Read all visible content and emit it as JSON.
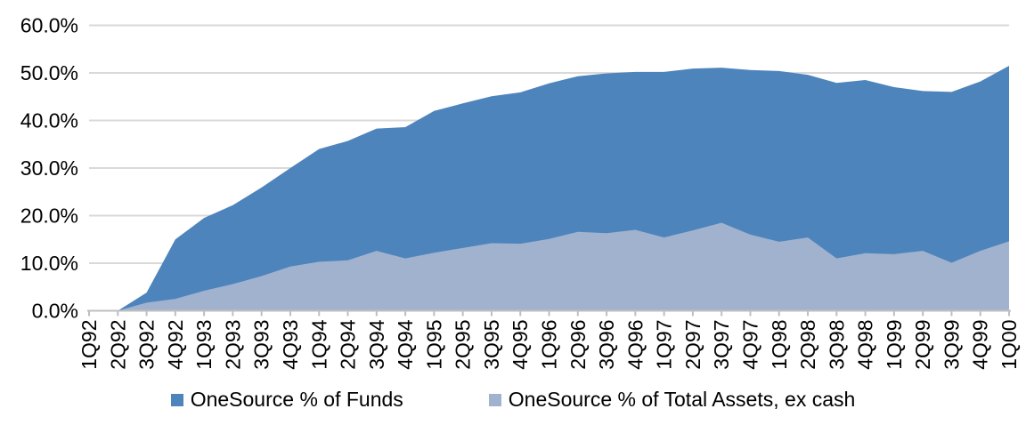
{
  "chart_data": {
    "type": "area",
    "title": "",
    "xlabel": "",
    "ylabel": "",
    "ylim": [
      0,
      60
    ],
    "ytick_step": 10,
    "ytick_labels": [
      "0.0%",
      "10.0%",
      "20.0%",
      "30.0%",
      "40.0%",
      "50.0%",
      "60.0%"
    ],
    "grid": true,
    "legend_position": "bottom",
    "categories": [
      "1Q92",
      "2Q92",
      "3Q92",
      "4Q92",
      "1Q93",
      "2Q93",
      "3Q93",
      "4Q93",
      "1Q94",
      "2Q94",
      "3Q94",
      "4Q94",
      "1Q95",
      "2Q95",
      "3Q95",
      "4Q95",
      "1Q96",
      "2Q96",
      "3Q96",
      "4Q96",
      "1Q97",
      "2Q97",
      "3Q97",
      "4Q97",
      "1Q98",
      "2Q98",
      "3Q98",
      "4Q98",
      "1Q99",
      "2Q99",
      "3Q99",
      "4Q99",
      "1Q00"
    ],
    "series": [
      {
        "name": "OneSource % of Funds",
        "color": "#4e84bc",
        "values": [
          0,
          0,
          3.8,
          15.0,
          19.5,
          22.2,
          25.9,
          30.0,
          34.0,
          35.7,
          38.3,
          38.6,
          42.0,
          43.6,
          45.1,
          45.9,
          47.8,
          49.3,
          49.9,
          50.2,
          50.2,
          50.9,
          51.1,
          50.6,
          50.4,
          49.6,
          47.9,
          48.5,
          47.0,
          46.2,
          46.0,
          48.2,
          51.5
        ]
      },
      {
        "name": "OneSource % of Total Assets, ex cash",
        "color": "#a0b2ce",
        "values": [
          0,
          0,
          1.7,
          2.5,
          4.2,
          5.6,
          7.3,
          9.3,
          10.3,
          10.6,
          12.6,
          11.0,
          12.2,
          13.2,
          14.2,
          14.1,
          15.1,
          16.6,
          16.3,
          17.0,
          15.4,
          16.9,
          18.5,
          16.0,
          14.5,
          15.4,
          11.0,
          12.1,
          11.9,
          12.6,
          10.1,
          12.6,
          14.6
        ]
      }
    ],
    "axis_color": "#bfbfbf",
    "gridline_color": "#d9d9d9"
  }
}
